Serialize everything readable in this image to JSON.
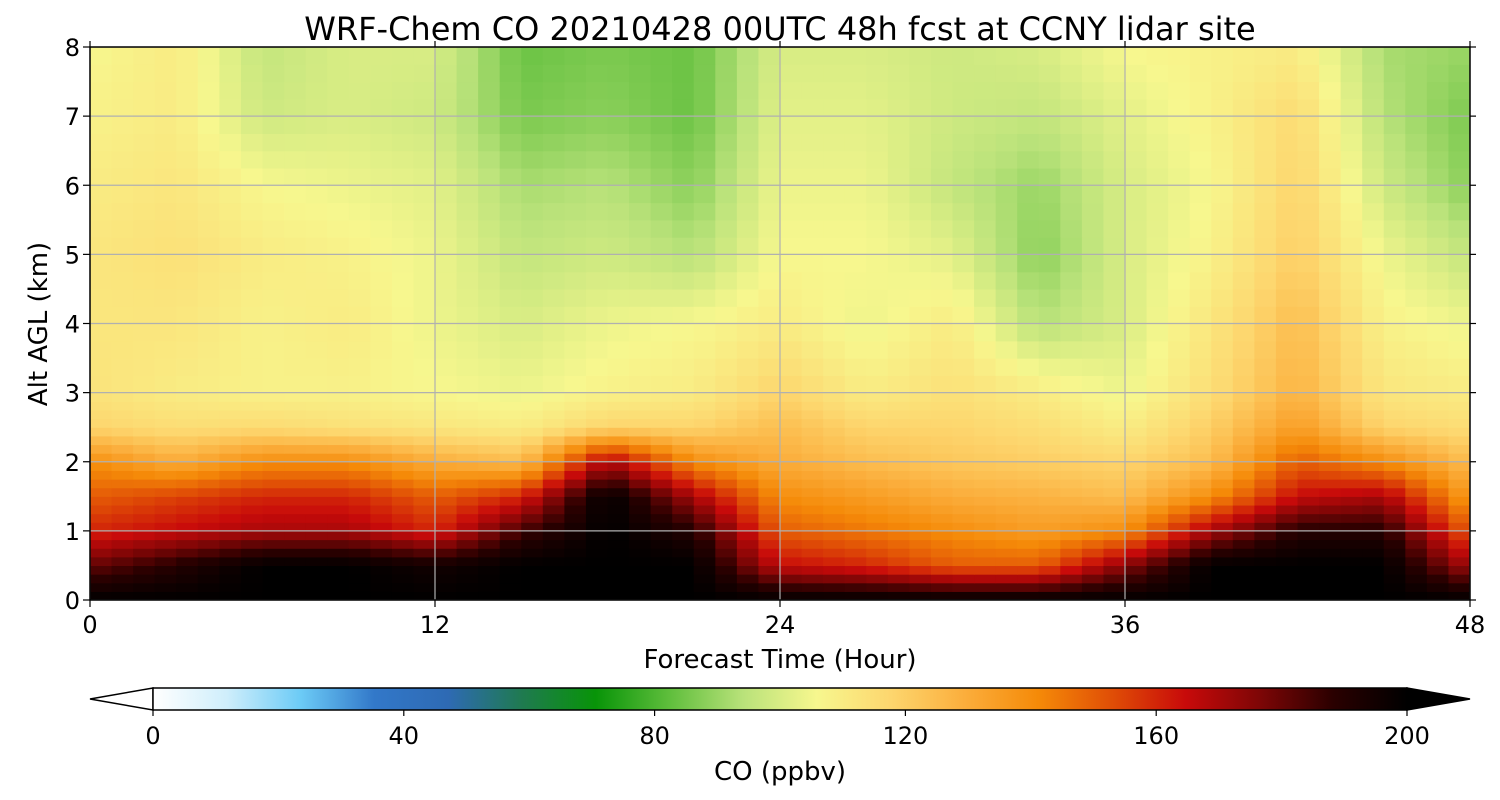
{
  "chart_data": {
    "type": "heatmap",
    "title": "WRF-Chem CO  20210428 00UTC 48h fcst at CCNY lidar site",
    "xlabel": "Forecast Time (Hour)",
    "ylabel": "Alt AGL (km)",
    "xlim": [
      0,
      48
    ],
    "ylim": [
      0,
      8
    ],
    "xticks": [
      "0",
      "12",
      "24",
      "36",
      "48"
    ],
    "yticks": [
      "0",
      "1",
      "2",
      "3",
      "4",
      "5",
      "6",
      "7",
      "8"
    ],
    "grid": true,
    "x": [
      0,
      3,
      6,
      9,
      12,
      15,
      18,
      21,
      24,
      27,
      30,
      33,
      36,
      39,
      42,
      45,
      48
    ],
    "y": [
      0,
      0.5,
      1,
      1.5,
      2,
      2.5,
      3,
      4,
      5,
      6,
      7,
      8
    ],
    "z": [
      [
        200,
        200,
        200,
        200,
        200,
        200,
        200,
        200,
        200,
        200,
        200,
        200,
        200,
        200,
        200,
        200,
        200
      ],
      [
        180,
        190,
        200,
        200,
        195,
        200,
        200,
        200,
        165,
        160,
        150,
        150,
        175,
        200,
        200,
        200,
        170
      ],
      [
        160,
        165,
        170,
        170,
        160,
        185,
        200,
        190,
        150,
        145,
        140,
        135,
        140,
        170,
        190,
        190,
        150
      ],
      [
        150,
        155,
        160,
        160,
        150,
        160,
        200,
        170,
        140,
        135,
        130,
        128,
        125,
        140,
        165,
        170,
        135
      ],
      [
        140,
        130,
        140,
        140,
        130,
        125,
        170,
        140,
        130,
        125,
        122,
        120,
        118,
        125,
        150,
        140,
        125
      ],
      [
        118,
        115,
        116,
        114,
        112,
        110,
        118,
        118,
        125,
        118,
        118,
        115,
        110,
        120,
        135,
        118,
        115
      ],
      [
        113,
        110,
        108,
        108,
        106,
        104,
        108,
        110,
        118,
        110,
        114,
        110,
        104,
        115,
        128,
        112,
        110
      ],
      [
        112,
        112,
        108,
        110,
        104,
        100,
        104,
        106,
        110,
        104,
        110,
        94,
        100,
        112,
        125,
        108,
        104
      ],
      [
        112,
        114,
        110,
        108,
        104,
        96,
        98,
        94,
        106,
        106,
        102,
        88,
        100,
        108,
        120,
        104,
        96
      ],
      [
        110,
        112,
        106,
        104,
        102,
        92,
        94,
        88,
        104,
        104,
        96,
        90,
        100,
        106,
        118,
        98,
        88
      ],
      [
        108,
        110,
        98,
        100,
        98,
        86,
        88,
        84,
        102,
        102,
        98,
        96,
        102,
        108,
        116,
        94,
        86
      ],
      [
        106,
        110,
        96,
        100,
        100,
        84,
        86,
        84,
        100,
        100,
        98,
        100,
        106,
        108,
        110,
        92,
        90
      ]
    ],
    "colorbar": {
      "label": "CO  (ppbv)",
      "ticks": [
        "0",
        "40",
        "80",
        "120",
        "160",
        "200"
      ],
      "range": [
        0,
        200
      ],
      "extend": "both",
      "colors": [
        "#ffffff",
        "#cfeefb",
        "#6ccbf6",
        "#3278c9",
        "#2e6ab4",
        "#1f7a50",
        "#089408",
        "#5fbe3c",
        "#b9e27a",
        "#f7f78e",
        "#fdd66e",
        "#fbae3c",
        "#f58a08",
        "#e04e06",
        "#c80a0a",
        "#7e0606",
        "#2a0000",
        "#000000"
      ]
    }
  }
}
